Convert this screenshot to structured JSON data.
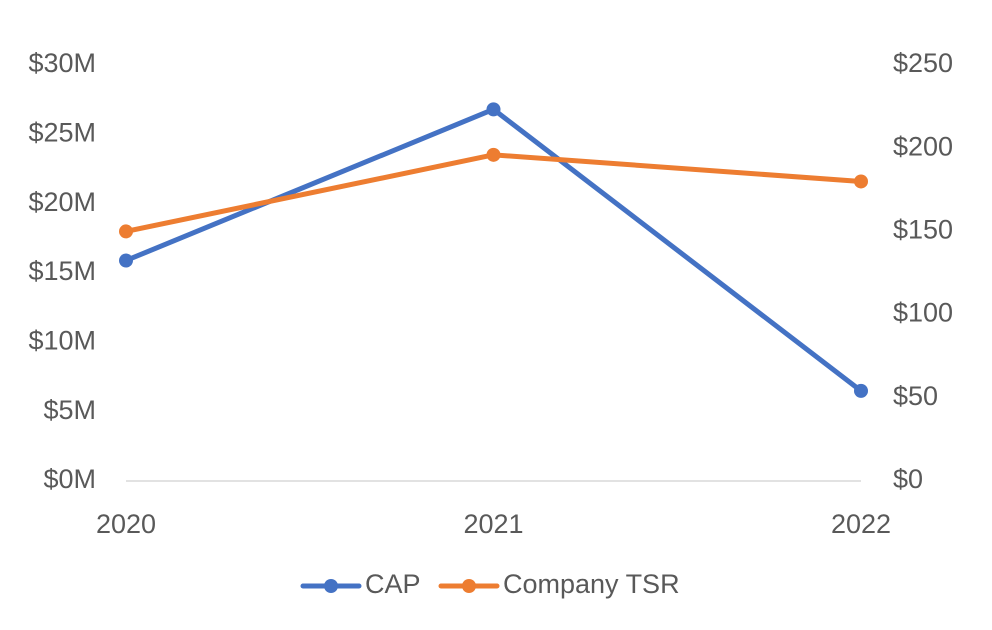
{
  "chart_data": {
    "type": "line",
    "categories": [
      "2020",
      "2021",
      "2022"
    ],
    "series": [
      {
        "name": "CAP",
        "axis": "left",
        "color": "#4472C4",
        "values": [
          15.9,
          26.8,
          6.5
        ]
      },
      {
        "name": "Company TSR",
        "axis": "right",
        "color": "#ED7D31",
        "values": [
          150,
          196,
          180
        ]
      }
    ],
    "y_left": {
      "ylim": [
        0,
        30
      ],
      "tick_values": [
        0,
        5,
        10,
        15,
        20,
        25,
        30
      ],
      "tick_labels": [
        "$0M",
        "$5M",
        "$10M",
        "$15M",
        "$20M",
        "$25M",
        "$30M"
      ]
    },
    "y_right": {
      "ylim": [
        0,
        250
      ],
      "tick_values": [
        0,
        50,
        100,
        150,
        200,
        250
      ],
      "tick_labels": [
        "$0",
        "$50",
        "$100",
        "$150",
        "$200",
        "$250"
      ]
    },
    "grid": false,
    "legend": "bottom",
    "axis_line_color": "#d9d9d9",
    "text_color": "#595959"
  }
}
